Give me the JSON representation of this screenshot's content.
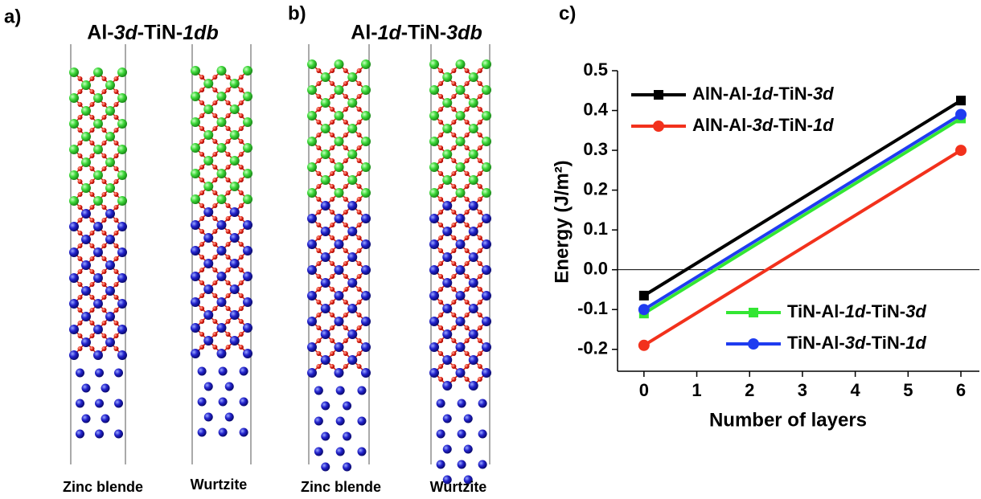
{
  "panels": [
    {
      "label": "a)",
      "title": "Al-3d-TiN-1db",
      "structures": [
        "Zinc blende",
        "Wurtzite"
      ]
    },
    {
      "label": "b)",
      "title": "Al-1d-TiN-3db",
      "structures": [
        "Zinc blende",
        "Wurtzite"
      ]
    }
  ],
  "chart_data": {
    "type": "line",
    "panel_label": "c)",
    "x_label": "Number of layers",
    "y_label": "Energy (J/m²)",
    "x": [
      0,
      6
    ],
    "series": [
      {
        "name": "AlN-Al-1d-TiN-3d",
        "color": "#000000",
        "marker": "square",
        "legend": "upper left",
        "values": [
          -0.065,
          0.425
        ]
      },
      {
        "name": "AlN-Al-3d-TiN-1d",
        "color": "#f2311c",
        "marker": "circle",
        "legend": "upper left",
        "values": [
          -0.19,
          0.3
        ]
      },
      {
        "name": "TiN-Al-1d-TiN-3d",
        "color": "#33e633",
        "marker": "square",
        "legend": "lower right",
        "values": [
          -0.11,
          0.38
        ]
      },
      {
        "name": "TiN-Al-3d-TiN-1d",
        "color": "#1f3cf0",
        "marker": "circle",
        "legend": "lower right",
        "values": [
          -0.1,
          0.39
        ]
      }
    ],
    "xlim": [
      -0.5,
      6.35
    ],
    "xticks": [
      0,
      1,
      2,
      3,
      4,
      5,
      6
    ],
    "ylim": [
      -0.255,
      0.5
    ],
    "yticks": [
      -0.2,
      -0.1,
      {
        "value": 0,
        "label": "0.0"
      },
      0.1,
      0.2,
      0.3,
      0.4,
      0.5
    ],
    "zero_line": true
  }
}
